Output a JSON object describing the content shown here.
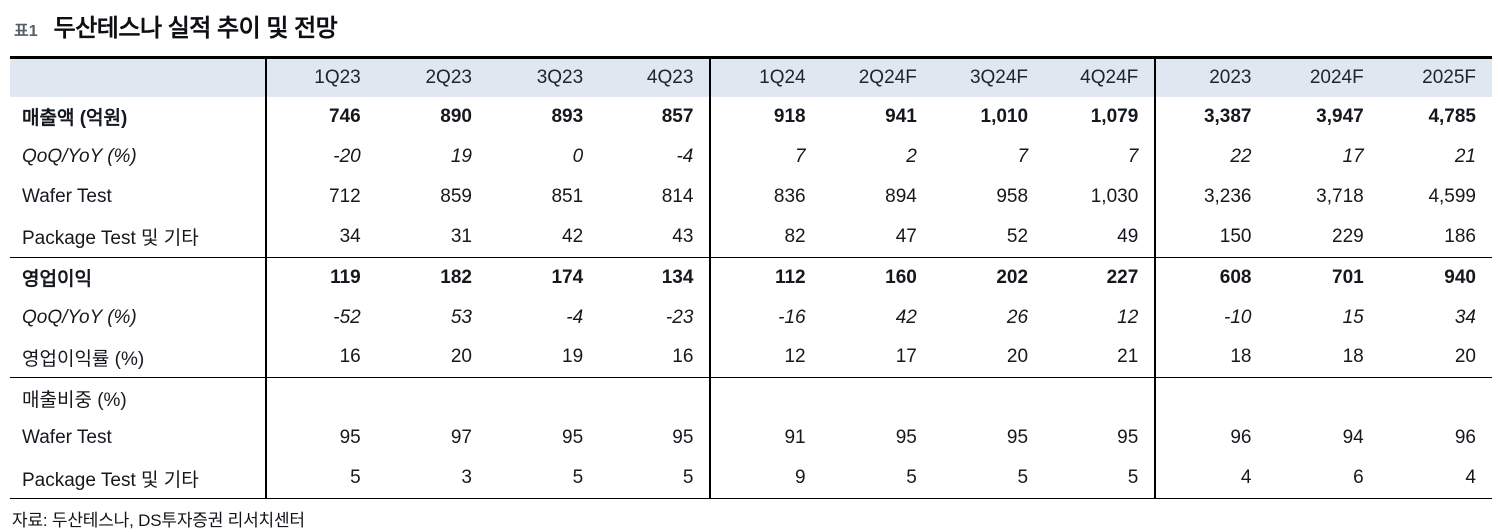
{
  "header": {
    "tag": "표1",
    "title": "두산테스나 실적 추이 및 전망"
  },
  "chart_data": {
    "type": "table",
    "title": "두산테스나 실적 추이 및 전망",
    "columns": [
      "",
      "1Q23",
      "2Q23",
      "3Q23",
      "4Q23",
      "1Q24",
      "2Q24F",
      "3Q24F",
      "4Q24F",
      "2023",
      "2024F",
      "2025F"
    ],
    "rows": [
      {
        "label": "매출액 (억원)",
        "style": "bold",
        "section_end": false,
        "values": [
          "746",
          "890",
          "893",
          "857",
          "918",
          "941",
          "1,010",
          "1,079",
          "3,387",
          "3,947",
          "4,785"
        ]
      },
      {
        "label": "QoQ/YoY (%)",
        "style": "italic",
        "section_end": false,
        "values": [
          "-20",
          "19",
          "0",
          "-4",
          "7",
          "2",
          "7",
          "7",
          "22",
          "17",
          "21"
        ]
      },
      {
        "label": "Wafer Test",
        "style": "normal",
        "section_end": false,
        "values": [
          "712",
          "859",
          "851",
          "814",
          "836",
          "894",
          "958",
          "1,030",
          "3,236",
          "3,718",
          "4,599"
        ]
      },
      {
        "label": "Package Test 및 기타",
        "style": "normal",
        "section_end": true,
        "values": [
          "34",
          "31",
          "42",
          "43",
          "82",
          "47",
          "52",
          "49",
          "150",
          "229",
          "186"
        ]
      },
      {
        "label": "영업이익",
        "style": "bold",
        "section_end": false,
        "values": [
          "119",
          "182",
          "174",
          "134",
          "112",
          "160",
          "202",
          "227",
          "608",
          "701",
          "940"
        ]
      },
      {
        "label": "QoQ/YoY (%)",
        "style": "italic",
        "section_end": false,
        "values": [
          "-52",
          "53",
          "-4",
          "-23",
          "-16",
          "42",
          "26",
          "12",
          "-10",
          "15",
          "34"
        ]
      },
      {
        "label": "영업이익률 (%)",
        "style": "normal",
        "section_end": true,
        "values": [
          "16",
          "20",
          "19",
          "16",
          "12",
          "17",
          "20",
          "21",
          "18",
          "18",
          "20"
        ]
      },
      {
        "label": "매출비중 (%)",
        "style": "normal",
        "section_end": false,
        "values": [
          "",
          "",
          "",
          "",
          "",
          "",
          "",
          "",
          "",
          "",
          ""
        ]
      },
      {
        "label": "Wafer Test",
        "style": "normal",
        "section_end": false,
        "values": [
          "95",
          "97",
          "95",
          "95",
          "91",
          "95",
          "95",
          "95",
          "96",
          "94",
          "96"
        ]
      },
      {
        "label": "Package Test 및 기타",
        "style": "normal",
        "section_end": false,
        "values": [
          "5",
          "3",
          "5",
          "5",
          "9",
          "5",
          "5",
          "5",
          "4",
          "6",
          "4"
        ]
      }
    ],
    "column_group_dividers_after": [
      0,
      4,
      8
    ],
    "source": "자료: 두산테스나, DS투자증권 리서치센터"
  },
  "footer": {
    "source": "자료: 두산테스나, DS투자증권 리서치센터"
  },
  "colors": {
    "header_bg": "#dfe7f0",
    "border": "#000000",
    "tag": "#555f6b"
  }
}
